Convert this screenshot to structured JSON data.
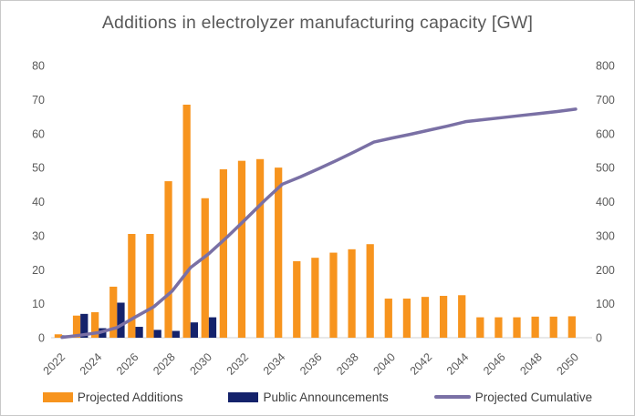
{
  "chart": {
    "title": "Additions in electrolyzer manufacturing capacity [GW]",
    "title_color": "#595959",
    "axis_text_color": "#595959",
    "axis_line_color": "#d9d9d9",
    "background": "#ffffff"
  },
  "chart_data": {
    "type": "combo-bar-line",
    "title": "Additions in electrolyzer manufacturing capacity [GW]",
    "categories": [
      "2022",
      "2023",
      "2024",
      "2025",
      "2026",
      "2027",
      "2028",
      "2029",
      "2030",
      "2031",
      "2032",
      "2033",
      "2034",
      "2035",
      "2036",
      "2037",
      "2038",
      "2039",
      "2040",
      "2041",
      "2042",
      "2043",
      "2044",
      "2045",
      "2046",
      "2047",
      "2048",
      "2049",
      "2050"
    ],
    "series": [
      {
        "name": "Projected Additions",
        "type": "bar",
        "axis": "left",
        "color": "#F7941E",
        "values": [
          1,
          6.5,
          7.5,
          15,
          30.5,
          30.5,
          46,
          68.5,
          41,
          49.5,
          52,
          52.5,
          50,
          22.5,
          23.5,
          25,
          26,
          27.5,
          11.5,
          11.5,
          12,
          12.3,
          12.5,
          6,
          6,
          6,
          6.2,
          6.2,
          6.3
        ]
      },
      {
        "name": "Public Announcements",
        "type": "bar",
        "axis": "left",
        "color": "#14226B",
        "values": [
          0.7,
          7,
          2.8,
          10.3,
          3.2,
          2.3,
          2,
          4.5,
          6,
          0,
          0,
          0,
          0,
          0,
          0,
          0,
          0,
          0,
          0,
          0,
          0,
          0,
          0,
          0,
          0,
          0,
          0,
          0,
          0
        ]
      },
      {
        "name": "Projected Cumulative",
        "type": "line",
        "axis": "right",
        "color": "#7A70A5",
        "values": [
          1,
          7.5,
          15,
          30,
          61,
          91,
          137,
          206,
          247,
          296,
          348,
          401,
          451,
          473,
          497,
          522,
          548,
          575,
          587,
          598,
          610,
          622,
          635,
          641,
          647,
          653,
          659,
          665,
          672
        ]
      }
    ],
    "left_axis": {
      "min": 0,
      "max": 80,
      "tick_step": 10,
      "ticks": [
        0,
        10,
        20,
        30,
        40,
        50,
        60,
        70,
        80
      ]
    },
    "right_axis": {
      "min": 0,
      "max": 800,
      "tick_step": 100,
      "ticks": [
        0,
        100,
        200,
        300,
        400,
        500,
        600,
        700,
        800
      ]
    },
    "x_axis": {
      "labeled_every": 2,
      "label_rotation": -45,
      "labels": [
        "2022",
        "2024",
        "2026",
        "2028",
        "2030",
        "2032",
        "2034",
        "2036",
        "2038",
        "2040",
        "2042",
        "2044",
        "2046",
        "2048",
        "2050"
      ]
    },
    "grid": false,
    "legend_position": "bottom"
  },
  "legend": {
    "items": [
      {
        "label": "Projected Additions",
        "swatch": "bar"
      },
      {
        "label": "Public Announcements",
        "swatch": "bar"
      },
      {
        "label": "Projected Cumulative",
        "swatch": "line"
      }
    ]
  }
}
